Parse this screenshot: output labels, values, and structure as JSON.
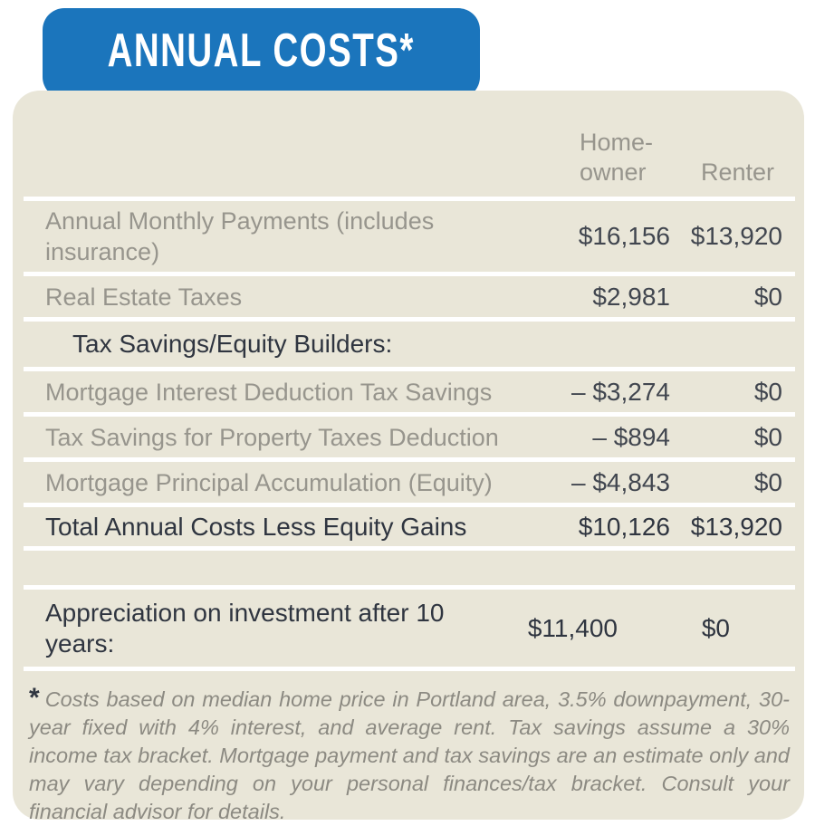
{
  "banner": {
    "title": "ANNUAL COSTS*"
  },
  "colors": {
    "banner_blue": "#1b75bc",
    "panel_beige": "#e9e6d8",
    "muted_text": "#97958d",
    "value_text": "#41464f",
    "dark_text": "#2f3540",
    "footnote_text": "#8c8a82",
    "separator_white": "#ffffff"
  },
  "table": {
    "header": {
      "homeowner": "Home-owner",
      "renter": "Renter"
    },
    "rows": [
      {
        "type": "item",
        "label": "Annual Monthly Payments (includes insurance)",
        "homeowner": "$16,156",
        "renter": "$13,920"
      },
      {
        "type": "item",
        "label": "Real Estate Taxes",
        "homeowner": "$2,981",
        "renter": "$0"
      },
      {
        "type": "section",
        "label": "Tax Savings/Equity Builders:",
        "homeowner": "",
        "renter": ""
      },
      {
        "type": "item",
        "label": "Mortgage Interest Deduction Tax Savings",
        "homeowner": "– $3,274",
        "renter": "$0"
      },
      {
        "type": "item",
        "label": "Tax Savings for Property Taxes Deduction",
        "homeowner": "– $894",
        "renter": "$0"
      },
      {
        "type": "item",
        "label": "Mortgage Principal Accumulation (Equity)",
        "homeowner": "– $4,843",
        "renter": "$0"
      },
      {
        "type": "total",
        "label": "Total Annual Costs Less Equity Gains",
        "homeowner": "$10,126",
        "renter": "$13,920"
      },
      {
        "type": "spacer",
        "label": "",
        "homeowner": "",
        "renter": ""
      },
      {
        "type": "emphasis",
        "label": "Appreciation on investment after 10 years:",
        "homeowner": "$11,400",
        "renter": "$0"
      }
    ]
  },
  "footnote": {
    "marker": "*",
    "text": "Costs based on median home price in Portland area, 3.5% downpayment, 30-year fixed with 4% interest, and average rent. Tax savings assume a 30% income tax bracket. Mortgage payment and tax savings are an estimate only and may vary depending on your personal finances/tax bracket. Consult your financial advisor for details."
  },
  "chart_data": {
    "type": "table",
    "title": "ANNUAL COSTS*",
    "columns": [
      "",
      "Homeowner",
      "Renter"
    ],
    "rows": [
      [
        "Annual Monthly Payments (includes insurance)",
        16156,
        13920
      ],
      [
        "Real Estate Taxes",
        2981,
        0
      ],
      [
        "Tax Savings/Equity Builders:",
        null,
        null
      ],
      [
        "Mortgage Interest Deduction Tax Savings",
        -3274,
        0
      ],
      [
        "Tax Savings for Property Taxes Deduction",
        -894,
        0
      ],
      [
        "Mortgage Principal Accumulation (Equity)",
        -4843,
        0
      ],
      [
        "Total Annual Costs Less Equity Gains",
        10126,
        13920
      ],
      [
        "Appreciation on investment after 10 years",
        11400,
        0
      ]
    ],
    "footnote": "Costs based on median home price in Portland area, 3.5% downpayment, 30-year fixed with 4% interest, and average rent. Tax savings assume a 30% income tax bracket. Mortgage payment and tax savings are an estimate only and may vary depending on your personal finances/tax bracket. Consult your financial advisor for details."
  }
}
